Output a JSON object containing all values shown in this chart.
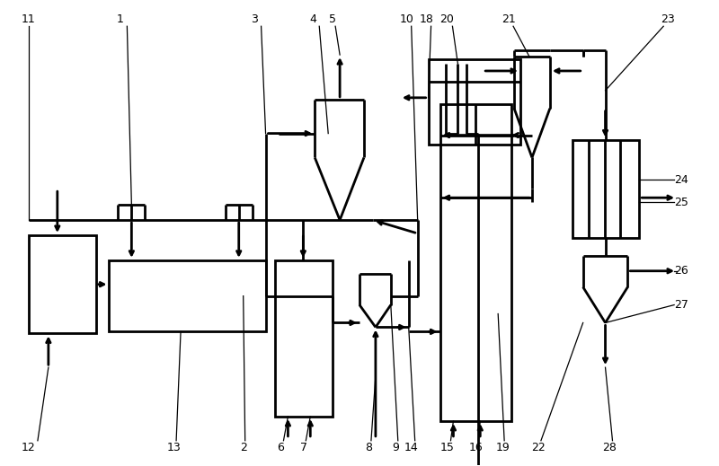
{
  "bg": "#ffffff",
  "lc": "#000000",
  "lw": 2.0,
  "fs": 9,
  "fw": 8.0,
  "fh": 5.19,
  "dpi": 100
}
